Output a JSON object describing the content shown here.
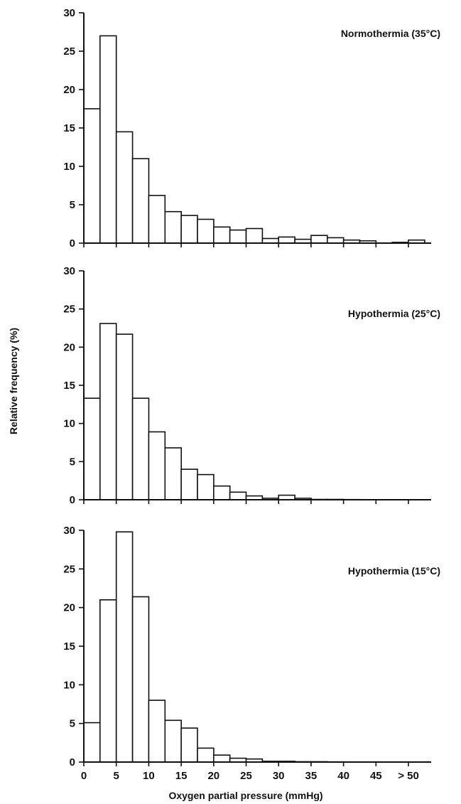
{
  "chart_data": [
    {
      "type": "bar",
      "title": "Normothermia (35°C)",
      "xlabel": "",
      "ylabel": "",
      "ylim": [
        0,
        30
      ],
      "yticks": [
        "0",
        "5",
        "10",
        "15",
        "20",
        "25",
        "30"
      ],
      "x_bin_width": 2.5,
      "x_bin_starts": [
        0,
        2.5,
        5,
        7.5,
        10,
        12.5,
        15,
        17.5,
        20,
        22.5,
        25,
        27.5,
        30,
        32.5,
        35,
        37.5,
        40,
        42.5,
        45,
        47.5,
        50
      ],
      "values": [
        17.5,
        27,
        14.5,
        11,
        6.2,
        4.1,
        3.6,
        3.1,
        2.1,
        1.7,
        1.9,
        0.6,
        0.8,
        0.5,
        1.0,
        0.7,
        0.4,
        0.3,
        0.0,
        0.1,
        0.4
      ]
    },
    {
      "type": "bar",
      "title": "Hypothermia (25°C)",
      "xlabel": "",
      "ylabel": "Relative frequency (%)",
      "ylim": [
        0,
        30
      ],
      "yticks": [
        "0",
        "5",
        "10",
        "15",
        "20",
        "25",
        "30"
      ],
      "x_bin_width": 2.5,
      "x_bin_starts": [
        0,
        2.5,
        5,
        7.5,
        10,
        12.5,
        15,
        17.5,
        20,
        22.5,
        25,
        27.5,
        30,
        32.5,
        35,
        37.5,
        40,
        42.5,
        45,
        47.5,
        50
      ],
      "values": [
        13.3,
        23.1,
        21.7,
        13.3,
        8.9,
        6.8,
        4.0,
        3.3,
        1.8,
        1.0,
        0.5,
        0.2,
        0.6,
        0.2,
        0.05,
        0.05,
        0.03,
        0.02,
        0.02,
        0.01,
        0.01
      ]
    },
    {
      "type": "bar",
      "title": "Hypothermia (15°C)",
      "xlabel": "Oxygen partial pressure (mmHg)",
      "ylabel": "",
      "ylim": [
        0,
        30
      ],
      "yticks": [
        "0",
        "5",
        "10",
        "15",
        "20",
        "25",
        "30"
      ],
      "xticks": [
        "0",
        "5",
        "10",
        "15",
        "20",
        "25",
        "30",
        "35",
        "40",
        "45",
        "> 50"
      ],
      "x_bin_width": 2.5,
      "x_bin_starts": [
        0,
        2.5,
        5,
        7.5,
        10,
        12.5,
        15,
        17.5,
        20,
        22.5,
        25,
        27.5,
        30,
        32.5,
        35,
        37.5,
        40,
        42.5,
        45,
        47.5,
        50
      ],
      "values": [
        5.1,
        21.0,
        29.8,
        21.4,
        8.0,
        5.4,
        4.4,
        1.8,
        0.9,
        0.5,
        0.4,
        0.1,
        0.1,
        0.05,
        0.05,
        0.03,
        0.02,
        0.02,
        0.01,
        0.01,
        0.01
      ]
    }
  ]
}
